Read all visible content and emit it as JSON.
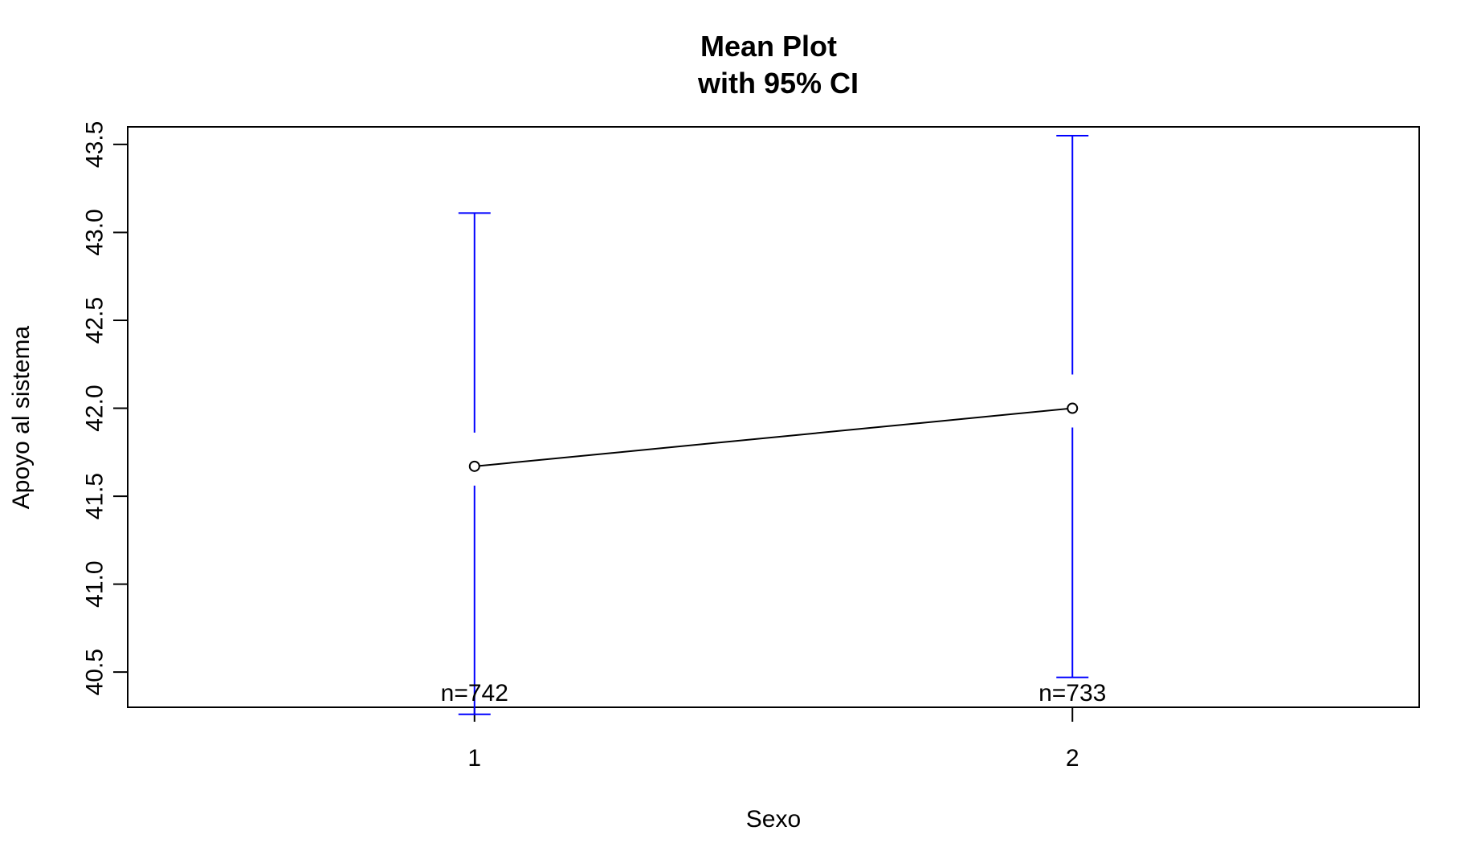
{
  "chart_data": {
    "type": "line",
    "title": "Mean Plot",
    "subtitle": "with 95% CI",
    "xlabel": "Sexo",
    "ylabel": "Apoyo al sistema",
    "categories": [
      "1",
      "2"
    ],
    "means": [
      41.67,
      42.0
    ],
    "ci_lower": [
      40.26,
      40.47
    ],
    "ci_upper": [
      43.11,
      43.55
    ],
    "n_labels": [
      "n=742",
      "n=733"
    ],
    "xlim": [
      0.42,
      2.58
    ],
    "ylim": [
      40.3,
      43.6
    ],
    "yticks": [
      40.5,
      41.0,
      41.5,
      42.0,
      42.5,
      43.0,
      43.5
    ],
    "ytick_labels": [
      "40.5",
      "41.0",
      "41.5",
      "42.0",
      "42.5",
      "43.0",
      "43.5"
    ],
    "grid": false,
    "colors": {
      "ci": "#0000ff",
      "line": "#000000",
      "frame": "#000000"
    }
  }
}
